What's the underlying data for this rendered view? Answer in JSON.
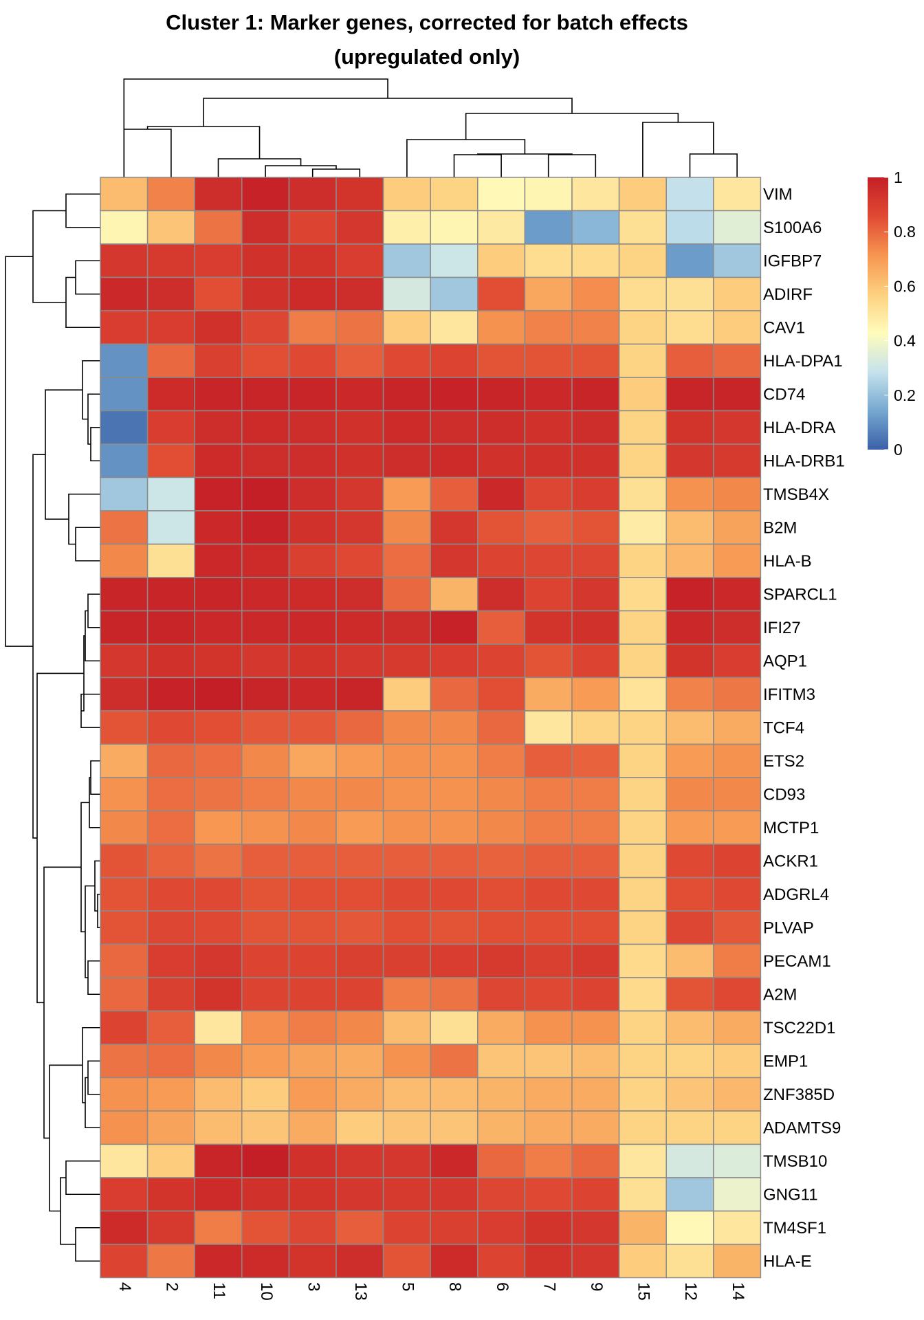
{
  "chart_data": {
    "type": "heatmap",
    "title": "Cluster 1: Marker genes, corrected for batch effects",
    "subtitle": "(upregulated only)",
    "columns": [
      "4",
      "2",
      "11",
      "10",
      "3",
      "13",
      "5",
      "8",
      "6",
      "7",
      "9",
      "15",
      "12",
      "14"
    ],
    "rows": [
      "VIM",
      "S100A6",
      "IGFBP7",
      "ADIRF",
      "CAV1",
      "HLA-DPA1",
      "CD74",
      "HLA-DRA",
      "HLA-DRB1",
      "TMSB4X",
      "B2M",
      "HLA-B",
      "SPARCL1",
      "IFI27",
      "AQP1",
      "IFITM3",
      "TCF4",
      "ETS2",
      "CD93",
      "MCTP1",
      "ACKR1",
      "ADGRL4",
      "PLVAP",
      "PECAM1",
      "A2M",
      "TSC22D1",
      "EMP1",
      "ZNF385D",
      "ADAMTS9",
      "TMSB10",
      "GNG11",
      "TM4SF1",
      "HLA-E"
    ],
    "values": [
      [
        0.62,
        0.75,
        0.95,
        0.99,
        0.95,
        0.93,
        0.58,
        0.56,
        0.44,
        0.45,
        0.5,
        0.58,
        0.28,
        0.5
      ],
      [
        0.45,
        0.6,
        0.78,
        0.95,
        0.88,
        0.92,
        0.47,
        0.45,
        0.49,
        0.12,
        0.18,
        0.52,
        0.27,
        0.35
      ],
      [
        0.92,
        0.91,
        0.9,
        0.94,
        0.93,
        0.9,
        0.22,
        0.3,
        0.58,
        0.53,
        0.54,
        0.56,
        0.12,
        0.22
      ],
      [
        0.97,
        0.95,
        0.85,
        0.94,
        0.96,
        0.95,
        0.32,
        0.22,
        0.85,
        0.67,
        0.73,
        0.53,
        0.52,
        0.58
      ],
      [
        0.9,
        0.9,
        0.94,
        0.87,
        0.76,
        0.78,
        0.58,
        0.5,
        0.72,
        0.75,
        0.75,
        0.56,
        0.53,
        0.58
      ],
      [
        0.1,
        0.8,
        0.89,
        0.85,
        0.86,
        0.82,
        0.86,
        0.88,
        0.84,
        0.84,
        0.84,
        0.56,
        0.82,
        0.8
      ],
      [
        0.1,
        0.96,
        0.98,
        0.98,
        0.98,
        0.97,
        0.98,
        0.99,
        0.98,
        0.97,
        0.98,
        0.58,
        0.98,
        0.98
      ],
      [
        0.04,
        0.9,
        0.95,
        0.96,
        0.95,
        0.94,
        0.96,
        0.95,
        0.95,
        0.94,
        0.95,
        0.56,
        0.93,
        0.92
      ],
      [
        0.1,
        0.85,
        0.96,
        0.95,
        0.95,
        0.94,
        0.95,
        0.96,
        0.94,
        0.94,
        0.94,
        0.56,
        0.92,
        0.91
      ],
      [
        0.22,
        0.3,
        0.99,
        1.0,
        0.95,
        0.92,
        0.7,
        0.82,
        0.97,
        0.87,
        0.9,
        0.52,
        0.72,
        0.74
      ],
      [
        0.78,
        0.3,
        0.97,
        0.99,
        0.94,
        0.92,
        0.74,
        0.92,
        0.84,
        0.82,
        0.84,
        0.48,
        0.62,
        0.68
      ],
      [
        0.74,
        0.52,
        0.97,
        0.96,
        0.89,
        0.86,
        0.79,
        0.92,
        0.88,
        0.87,
        0.87,
        0.56,
        0.63,
        0.7
      ],
      [
        0.98,
        0.98,
        0.98,
        0.97,
        0.96,
        0.95,
        0.8,
        0.64,
        0.95,
        0.88,
        0.92,
        0.54,
        0.99,
        0.97
      ],
      [
        0.98,
        0.98,
        0.97,
        0.97,
        0.97,
        0.96,
        0.95,
        0.99,
        0.82,
        0.93,
        0.94,
        0.56,
        0.97,
        0.95
      ],
      [
        0.92,
        0.94,
        0.93,
        0.92,
        0.93,
        0.92,
        0.91,
        0.9,
        0.88,
        0.84,
        0.88,
        0.56,
        0.93,
        0.9
      ],
      [
        0.95,
        0.99,
        1.0,
        0.98,
        0.97,
        0.98,
        0.58,
        0.8,
        0.85,
        0.66,
        0.7,
        0.51,
        0.75,
        0.77
      ],
      [
        0.84,
        0.86,
        0.85,
        0.83,
        0.83,
        0.8,
        0.74,
        0.74,
        0.8,
        0.5,
        0.56,
        0.56,
        0.62,
        0.66
      ],
      [
        0.66,
        0.8,
        0.79,
        0.74,
        0.67,
        0.7,
        0.72,
        0.72,
        0.76,
        0.82,
        0.81,
        0.56,
        0.7,
        0.72
      ],
      [
        0.72,
        0.79,
        0.78,
        0.76,
        0.74,
        0.74,
        0.72,
        0.72,
        0.74,
        0.76,
        0.76,
        0.56,
        0.74,
        0.74
      ],
      [
        0.74,
        0.79,
        0.71,
        0.72,
        0.74,
        0.7,
        0.72,
        0.72,
        0.74,
        0.76,
        0.76,
        0.56,
        0.7,
        0.7
      ],
      [
        0.84,
        0.81,
        0.78,
        0.82,
        0.82,
        0.82,
        0.82,
        0.82,
        0.81,
        0.82,
        0.82,
        0.56,
        0.86,
        0.88
      ],
      [
        0.84,
        0.86,
        0.86,
        0.84,
        0.85,
        0.85,
        0.86,
        0.86,
        0.85,
        0.86,
        0.86,
        0.56,
        0.85,
        0.86
      ],
      [
        0.84,
        0.87,
        0.86,
        0.84,
        0.84,
        0.83,
        0.85,
        0.84,
        0.85,
        0.85,
        0.85,
        0.56,
        0.87,
        0.83
      ],
      [
        0.8,
        0.9,
        0.92,
        0.88,
        0.88,
        0.89,
        0.89,
        0.9,
        0.91,
        0.89,
        0.91,
        0.54,
        0.62,
        0.76
      ],
      [
        0.8,
        0.89,
        0.93,
        0.88,
        0.88,
        0.88,
        0.76,
        0.78,
        0.87,
        0.86,
        0.88,
        0.54,
        0.84,
        0.86
      ],
      [
        0.88,
        0.82,
        0.5,
        0.73,
        0.76,
        0.74,
        0.62,
        0.52,
        0.66,
        0.72,
        0.72,
        0.56,
        0.62,
        0.66
      ],
      [
        0.78,
        0.79,
        0.74,
        0.7,
        0.68,
        0.66,
        0.72,
        0.78,
        0.6,
        0.6,
        0.62,
        0.56,
        0.56,
        0.58
      ],
      [
        0.72,
        0.7,
        0.62,
        0.58,
        0.7,
        0.66,
        0.62,
        0.62,
        0.64,
        0.66,
        0.66,
        0.56,
        0.6,
        0.63
      ],
      [
        0.72,
        0.68,
        0.62,
        0.6,
        0.66,
        0.58,
        0.6,
        0.6,
        0.64,
        0.66,
        0.66,
        0.56,
        0.56,
        0.56
      ],
      [
        0.5,
        0.58,
        0.98,
        1.0,
        0.94,
        0.92,
        0.92,
        0.97,
        0.8,
        0.76,
        0.8,
        0.5,
        0.32,
        0.34
      ],
      [
        0.9,
        0.93,
        0.96,
        0.94,
        0.93,
        0.92,
        0.91,
        0.92,
        0.87,
        0.86,
        0.88,
        0.52,
        0.22,
        0.38
      ],
      [
        0.96,
        0.91,
        0.76,
        0.84,
        0.87,
        0.82,
        0.88,
        0.89,
        0.9,
        0.93,
        0.92,
        0.64,
        0.44,
        0.5
      ],
      [
        0.88,
        0.77,
        0.97,
        0.96,
        0.93,
        0.95,
        0.84,
        0.96,
        0.88,
        0.93,
        0.92,
        0.58,
        0.52,
        0.64
      ]
    ],
    "legend": {
      "ticks": [
        "0",
        "0.2",
        "0.4",
        "0.6",
        "0.8",
        "1"
      ],
      "range": [
        0,
        1
      ],
      "colors": [
        "#3a60a8",
        "#75a8cf",
        "#c6e2ec",
        "#fffcbc",
        "#fdd07f",
        "#f79550",
        "#e04a33",
        "#c41f26"
      ]
    },
    "row_dendrogram": "shown (left)",
    "column_dendrogram": "shown (top)"
  }
}
